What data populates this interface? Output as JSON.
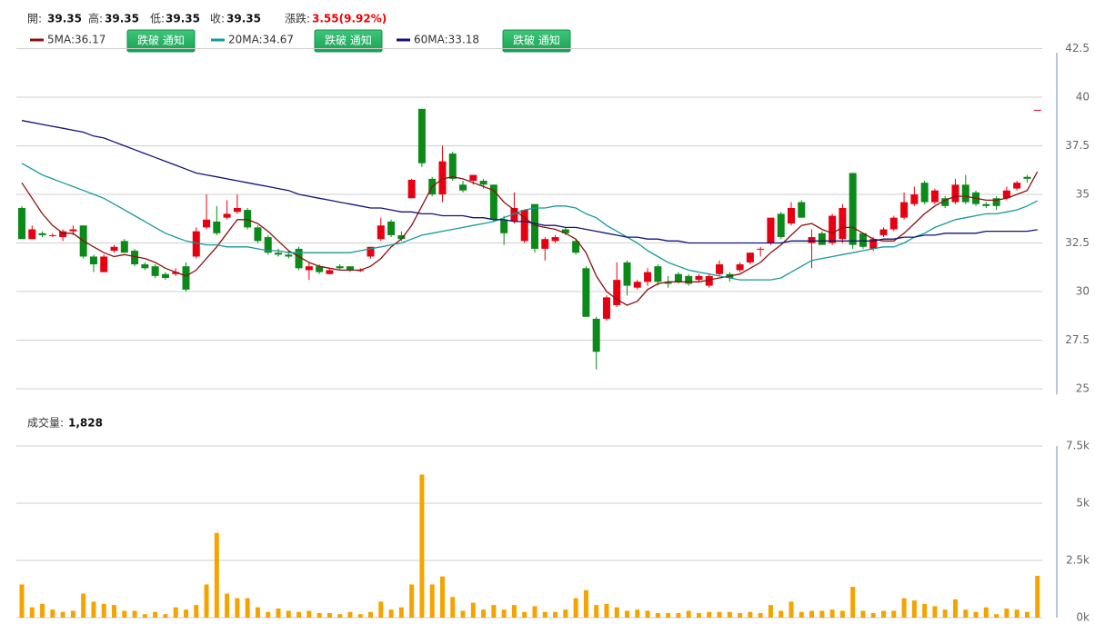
{
  "chart_data": [
    {
      "type": "candlestick",
      "quote_labels": [
        "開:",
        "高:",
        "低:",
        "收:"
      ],
      "change_label": "漲跌:",
      "change": "3.55(9.92%)",
      "button": "跌破 通知",
      "up_color": "#e60012",
      "down_color": "#0b8a1a",
      "ylim": [
        24.7,
        42.5
      ],
      "yticks": [
        25,
        27.5,
        30,
        32.5,
        35,
        37.5,
        40,
        42.5
      ],
      "grid": true,
      "candles": {
        "open": [
          34.3,
          32.7,
          33.0,
          32.9,
          32.8,
          33.1,
          33.4,
          31.8,
          31.0,
          32.1,
          32.6,
          32.1,
          31.4,
          31.3,
          30.9,
          30.9,
          31.3,
          31.8,
          33.3,
          33.6,
          33.8,
          34.1,
          34.2,
          33.3,
          32.8,
          32.0,
          31.9,
          32.2,
          31.1,
          31.3,
          30.9,
          31.3,
          31.3,
          31.1,
          31.8,
          32.7,
          33.6,
          32.9,
          34.8,
          39.4,
          35.8,
          35.0,
          37.1,
          35.5,
          35.7,
          35.7,
          35.5,
          33.7,
          33.6,
          32.6,
          34.5,
          32.2,
          32.6,
          33.2,
          32.6,
          31.2,
          28.6,
          28.6,
          29.3,
          31.5,
          30.2,
          30.5,
          31.3,
          30.5,
          30.9,
          30.8,
          30.6,
          30.3,
          30.9,
          30.9,
          31.1,
          31.5,
          32.2,
          32.5,
          34.0,
          33.5,
          34.6,
          32.5,
          33.0,
          32.5,
          32.7,
          36.1,
          33.0,
          32.2,
          32.9,
          33.2,
          33.8,
          34.5,
          35.6,
          34.6,
          34.8,
          34.6,
          35.5,
          35.1,
          34.5,
          34.8,
          34.8,
          35.3,
          35.9,
          39.35
        ],
        "high": [
          34.4,
          33.4,
          33.1,
          33.0,
          33.2,
          33.4,
          33.4,
          31.9,
          31.9,
          32.4,
          32.7,
          32.2,
          31.5,
          31.4,
          31.0,
          31.2,
          31.5,
          33.3,
          35.0,
          34.4,
          34.7,
          35.0,
          34.3,
          33.4,
          32.9,
          32.2,
          32.1,
          32.3,
          31.5,
          31.4,
          31.2,
          31.4,
          31.3,
          31.2,
          32.3,
          33.8,
          33.7,
          33.1,
          35.8,
          39.4,
          35.9,
          37.5,
          37.2,
          35.7,
          36.0,
          35.8,
          35.5,
          33.9,
          35.1,
          34.2,
          34.5,
          32.8,
          32.9,
          33.3,
          32.7,
          31.3,
          28.7,
          29.8,
          31.5,
          31.6,
          30.6,
          31.2,
          31.4,
          30.8,
          31.0,
          30.9,
          30.9,
          30.9,
          31.6,
          31.0,
          31.5,
          32.0,
          32.3,
          33.8,
          34.1,
          34.6,
          34.7,
          33.2,
          33.1,
          34.0,
          34.5,
          36.1,
          33.0,
          32.8,
          33.3,
          33.9,
          35.1,
          35.4,
          35.7,
          35.3,
          34.9,
          35.8,
          36.0,
          35.2,
          34.6,
          34.9,
          35.4,
          35.7,
          36.0,
          39.35
        ],
        "low": [
          32.7,
          32.7,
          32.8,
          32.8,
          32.6,
          32.9,
          31.7,
          31.0,
          31.0,
          32.0,
          32.0,
          31.3,
          31.1,
          30.7,
          30.6,
          30.8,
          30.0,
          31.7,
          33.2,
          32.9,
          33.7,
          34.0,
          33.2,
          32.5,
          31.9,
          31.8,
          31.7,
          31.1,
          30.6,
          30.9,
          30.9,
          31.1,
          31.0,
          31.0,
          31.7,
          32.6,
          32.8,
          32.6,
          34.8,
          36.4,
          34.9,
          34.6,
          35.7,
          35.1,
          35.5,
          35.3,
          33.6,
          32.4,
          33.5,
          32.5,
          32.0,
          31.6,
          32.5,
          32.9,
          31.9,
          28.7,
          26.0,
          28.5,
          29.2,
          29.8,
          30.1,
          30.3,
          30.3,
          30.2,
          30.4,
          30.3,
          30.5,
          30.2,
          30.8,
          30.5,
          31.0,
          31.4,
          31.8,
          32.4,
          32.7,
          33.4,
          33.8,
          31.2,
          32.4,
          32.4,
          32.5,
          32.2,
          32.2,
          32.1,
          32.8,
          33.1,
          33.7,
          34.4,
          34.5,
          34.5,
          34.3,
          34.5,
          34.5,
          34.4,
          34.3,
          34.2,
          34.7,
          35.2,
          35.6,
          39.35
        ],
        "close": [
          32.7,
          33.2,
          32.9,
          32.9,
          33.1,
          33.2,
          31.8,
          31.4,
          31.8,
          32.3,
          32.0,
          31.4,
          31.2,
          30.8,
          30.7,
          31.0,
          30.1,
          33.1,
          33.7,
          33.0,
          34.0,
          34.3,
          33.3,
          32.6,
          32.0,
          31.9,
          31.8,
          31.2,
          31.3,
          31.0,
          31.1,
          31.2,
          31.1,
          31.1,
          32.3,
          33.4,
          32.9,
          32.7,
          35.75,
          36.6,
          35.0,
          36.7,
          35.8,
          35.2,
          36.0,
          35.5,
          33.7,
          33.0,
          34.3,
          34.2,
          32.2,
          32.7,
          32.8,
          33.0,
          32.0,
          28.7,
          26.9,
          29.7,
          30.6,
          30.3,
          30.5,
          31.0,
          30.5,
          30.4,
          30.5,
          30.4,
          30.8,
          30.8,
          31.4,
          30.7,
          31.4,
          32.0,
          32.2,
          33.8,
          32.8,
          34.3,
          33.8,
          32.8,
          32.4,
          33.9,
          34.3,
          32.4,
          32.3,
          32.7,
          33.2,
          33.8,
          34.6,
          35.0,
          34.6,
          35.2,
          34.4,
          35.5,
          34.6,
          34.5,
          34.4,
          34.4,
          35.2,
          35.6,
          35.8,
          39.35
        ]
      },
      "series": [
        {
          "name": "5MA:",
          "color": "#8b1212",
          "values": [
            35.6,
            34.8,
            34.0,
            33.4,
            33.0,
            33.0,
            32.6,
            32.3,
            32.0,
            31.8,
            31.9,
            31.8,
            31.7,
            31.5,
            31.2,
            31.0,
            30.8,
            31.1,
            31.7,
            32.3,
            33.0,
            33.7,
            33.7,
            33.5,
            33.1,
            32.6,
            32.1,
            31.8,
            31.5,
            31.3,
            31.2,
            31.1,
            31.1,
            31.1,
            31.3,
            31.7,
            32.3,
            32.7,
            33.4,
            34.4,
            35.4,
            35.8,
            35.9,
            35.8,
            35.6,
            35.4,
            35.2,
            34.6,
            34.2,
            33.8,
            33.4,
            33.3,
            33.2,
            33.0,
            32.7,
            32.0,
            30.8,
            30.0,
            29.6,
            29.3,
            29.5,
            30.1,
            30.4,
            30.5,
            30.5,
            30.5,
            30.5,
            30.6,
            30.7,
            30.8,
            30.9,
            31.2,
            31.5,
            32.0,
            32.4,
            32.9,
            33.4,
            33.5,
            33.2,
            33.0,
            33.3,
            33.3,
            33.0,
            32.7,
            32.6,
            32.6,
            33.0,
            33.5,
            34.0,
            34.4,
            34.7,
            34.9,
            34.9,
            34.8,
            34.7,
            34.7,
            34.8,
            35.0,
            35.2,
            36.17
          ]
        },
        {
          "name": "20MA:",
          "color": "#169a9a",
          "values": [
            36.6,
            36.3,
            36.0,
            35.8,
            35.6,
            35.4,
            35.2,
            35.0,
            34.8,
            34.5,
            34.2,
            33.9,
            33.6,
            33.3,
            33.0,
            32.8,
            32.6,
            32.5,
            32.4,
            32.4,
            32.3,
            32.3,
            32.3,
            32.2,
            32.1,
            32.1,
            32.0,
            32.0,
            32.0,
            32.0,
            32.0,
            32.0,
            32.0,
            32.1,
            32.2,
            32.3,
            32.4,
            32.5,
            32.7,
            32.9,
            33.0,
            33.1,
            33.2,
            33.3,
            33.4,
            33.5,
            33.6,
            33.8,
            34.0,
            34.2,
            34.3,
            34.3,
            34.4,
            34.4,
            34.3,
            34.0,
            33.8,
            33.4,
            33.1,
            32.8,
            32.5,
            32.1,
            31.8,
            31.5,
            31.3,
            31.1,
            31.0,
            30.9,
            30.8,
            30.7,
            30.6,
            30.6,
            30.6,
            30.6,
            30.7,
            31.0,
            31.3,
            31.6,
            31.7,
            31.8,
            31.9,
            32.0,
            32.1,
            32.2,
            32.3,
            32.3,
            32.5,
            32.8,
            33.0,
            33.3,
            33.5,
            33.7,
            33.8,
            33.9,
            34.0,
            34.0,
            34.1,
            34.2,
            34.4,
            34.67
          ]
        },
        {
          "name": "60MA:",
          "color": "#12127a",
          "values": [
            38.8,
            38.7,
            38.6,
            38.5,
            38.4,
            38.3,
            38.2,
            38.0,
            37.9,
            37.7,
            37.5,
            37.3,
            37.1,
            36.9,
            36.7,
            36.5,
            36.3,
            36.1,
            36.0,
            35.9,
            35.8,
            35.7,
            35.6,
            35.5,
            35.4,
            35.3,
            35.2,
            35.0,
            34.9,
            34.8,
            34.7,
            34.6,
            34.5,
            34.4,
            34.3,
            34.3,
            34.2,
            34.1,
            34.1,
            34.0,
            34.0,
            33.9,
            33.9,
            33.9,
            33.8,
            33.8,
            33.7,
            33.7,
            33.6,
            33.6,
            33.5,
            33.4,
            33.4,
            33.3,
            33.3,
            33.2,
            33.1,
            33.0,
            32.9,
            32.8,
            32.8,
            32.7,
            32.7,
            32.6,
            32.6,
            32.5,
            32.5,
            32.5,
            32.5,
            32.5,
            32.5,
            32.5,
            32.5,
            32.5,
            32.5,
            32.6,
            32.6,
            32.6,
            32.6,
            32.6,
            32.6,
            32.6,
            32.6,
            32.6,
            32.7,
            32.7,
            32.8,
            32.8,
            32.9,
            32.9,
            33.0,
            33.0,
            33.0,
            33.0,
            33.1,
            33.1,
            33.1,
            33.1,
            33.1,
            33.18
          ]
        }
      ]
    },
    {
      "type": "bar",
      "title": "成交量:",
      "current": {
        "value": 1828,
        "label": "1,828"
      },
      "color": "#f5a300",
      "ylim": [
        0,
        7500
      ],
      "yticks": [
        {
          "value": 0,
          "label": "0k"
        },
        {
          "value": 2500,
          "label": "2.5k"
        },
        {
          "value": 5000,
          "label": "5k"
        },
        {
          "value": 7500,
          "label": "7.5k"
        }
      ],
      "grid": true,
      "values": [
        1450,
        450,
        600,
        350,
        250,
        300,
        1050,
        700,
        600,
        550,
        300,
        300,
        150,
        250,
        150,
        450,
        350,
        550,
        1450,
        3700,
        1050,
        850,
        850,
        450,
        250,
        400,
        300,
        250,
        300,
        200,
        200,
        150,
        250,
        150,
        250,
        700,
        350,
        450,
        1450,
        6250,
        1450,
        1800,
        900,
        300,
        650,
        350,
        550,
        350,
        550,
        250,
        500,
        250,
        250,
        350,
        850,
        1200,
        550,
        600,
        450,
        300,
        350,
        300,
        200,
        200,
        200,
        300,
        200,
        250,
        250,
        250,
        200,
        250,
        200,
        550,
        300,
        700,
        250,
        300,
        300,
        350,
        300,
        1350,
        300,
        200,
        300,
        300,
        850,
        750,
        600,
        500,
        350,
        800,
        350,
        250,
        450,
        150,
        400,
        350,
        250,
        1828
      ]
    }
  ]
}
